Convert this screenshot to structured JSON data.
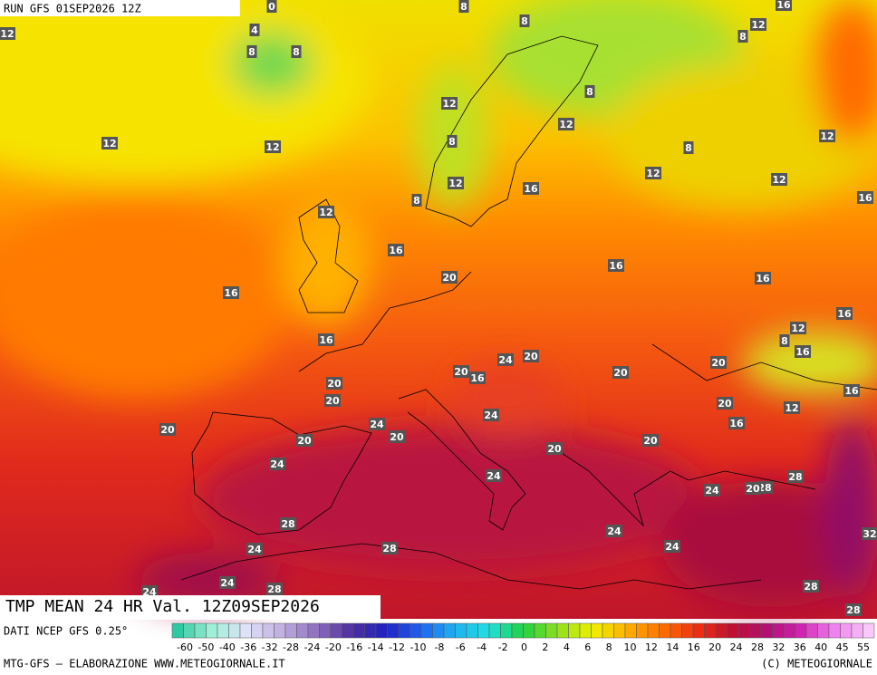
{
  "header": {
    "run": "RUN GFS 01SEP2026 12Z"
  },
  "map": {
    "title": "TMP MEAN 24 HR Val. 12Z09SEP2026",
    "contour_labels": [
      0,
      8,
      16,
      12,
      4,
      8,
      12,
      8,
      8,
      8,
      8,
      12,
      12,
      12,
      12,
      12,
      8,
      8,
      12,
      12,
      12,
      16,
      16,
      8,
      12,
      16,
      20,
      16,
      16,
      16,
      16,
      12,
      8,
      16,
      16,
      20,
      24,
      20,
      20,
      16,
      20,
      20,
      16,
      20,
      20,
      12,
      16,
      24,
      24,
      20,
      20,
      20,
      20,
      20,
      24,
      24,
      28,
      28,
      20,
      24,
      28,
      32,
      24,
      24,
      24,
      28,
      24,
      28,
      28,
      24,
      28
    ]
  },
  "legend": {
    "source": "DATI NCEP GFS 0.25°",
    "scale": [
      -60,
      -50,
      -40,
      -36,
      -32,
      -28,
      -24,
      -20,
      -16,
      -14,
      -12,
      -10,
      -8,
      -6,
      -4,
      -2,
      0,
      2,
      4,
      6,
      8,
      10,
      12,
      14,
      16,
      20,
      24,
      28,
      32,
      36,
      40,
      45,
      55
    ]
  },
  "footer": {
    "credit": "MTG-GFS — ELABORAZIONE WWW.METEOGIORNALE.IT",
    "copyright": "(C) METEOGIORNALE"
  }
}
